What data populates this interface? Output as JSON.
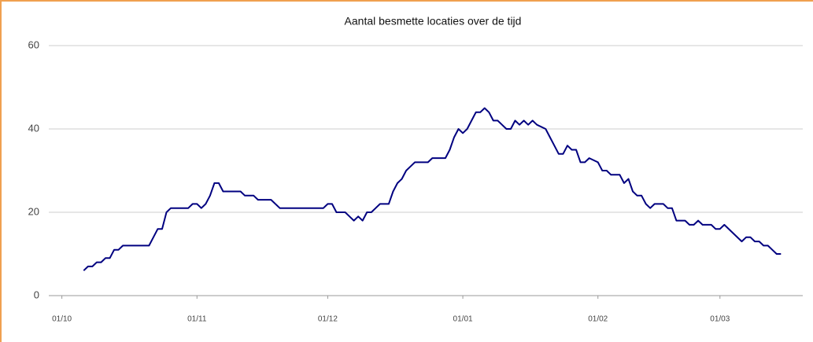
{
  "chart_data": {
    "type": "line",
    "title": "Aantal besmette locaties over de tijd",
    "x": [
      5,
      6,
      7,
      8,
      9,
      10,
      11,
      12,
      13,
      14,
      20,
      21,
      22,
      23,
      24,
      25,
      29,
      30,
      31,
      32,
      33,
      34,
      35,
      36,
      37,
      41,
      42,
      44,
      45,
      48,
      50,
      60,
      61,
      62,
      63,
      65,
      66,
      67,
      68,
      69,
      70,
      71,
      72,
      73,
      75,
      76,
      77,
      78,
      79,
      80,
      81,
      84,
      85,
      88,
      89,
      90,
      91,
      92,
      93,
      94,
      95,
      96,
      97,
      98,
      99,
      100,
      101,
      102,
      103,
      104,
      105,
      106,
      107,
      108,
      109,
      111,
      112,
      113,
      114,
      115,
      116,
      117,
      118,
      119,
      120,
      121,
      123,
      124,
      125,
      126,
      128,
      129,
      130,
      131,
      132,
      133,
      134,
      135,
      136,
      138,
      139,
      140,
      141,
      143,
      144,
      145,
      146,
      147,
      149,
      150,
      151,
      152,
      154,
      156,
      157,
      158,
      159,
      160,
      161,
      162,
      163,
      164,
      165
    ],
    "series": [
      {
        "color": "#000080",
        "values": [
          6,
          7,
          7,
          8,
          8,
          9,
          9,
          11,
          11,
          12,
          12,
          14,
          16,
          16,
          20,
          21,
          21,
          22,
          22,
          21,
          22,
          24,
          27,
          27,
          25,
          25,
          24,
          24,
          23,
          23,
          21,
          21,
          22,
          22,
          20,
          20,
          19,
          18,
          19,
          18,
          20,
          20,
          21,
          22,
          22,
          25,
          27,
          28,
          30,
          31,
          32,
          32,
          33,
          33,
          35,
          38,
          40,
          39,
          40,
          42,
          44,
          44,
          45,
          44,
          42,
          42,
          41,
          40,
          40,
          42,
          41,
          42,
          41,
          42,
          41,
          40,
          38,
          36,
          34,
          34,
          36,
          35,
          35,
          32,
          32,
          33,
          32,
          30,
          30,
          29,
          29,
          27,
          28,
          25,
          24,
          24,
          22,
          21,
          22,
          22,
          21,
          21,
          18,
          18,
          17,
          17,
          18,
          17,
          17,
          16,
          16,
          17,
          15,
          13,
          14,
          14,
          13,
          13,
          12,
          12,
          11,
          10,
          10
        ]
      }
    ],
    "xlim": [
      -3,
      170
    ],
    "xticks": [
      {
        "value": 0,
        "label": "01/10"
      },
      {
        "value": 31,
        "label": "01/11"
      },
      {
        "value": 61,
        "label": "01/12"
      },
      {
        "value": 92,
        "label": "01/01"
      },
      {
        "value": 123,
        "label": "01/02"
      },
      {
        "value": 151,
        "label": "01/03"
      }
    ],
    "ylim": [
      0,
      60
    ],
    "yticks": [
      0,
      20,
      40,
      60
    ],
    "grid": true
  }
}
